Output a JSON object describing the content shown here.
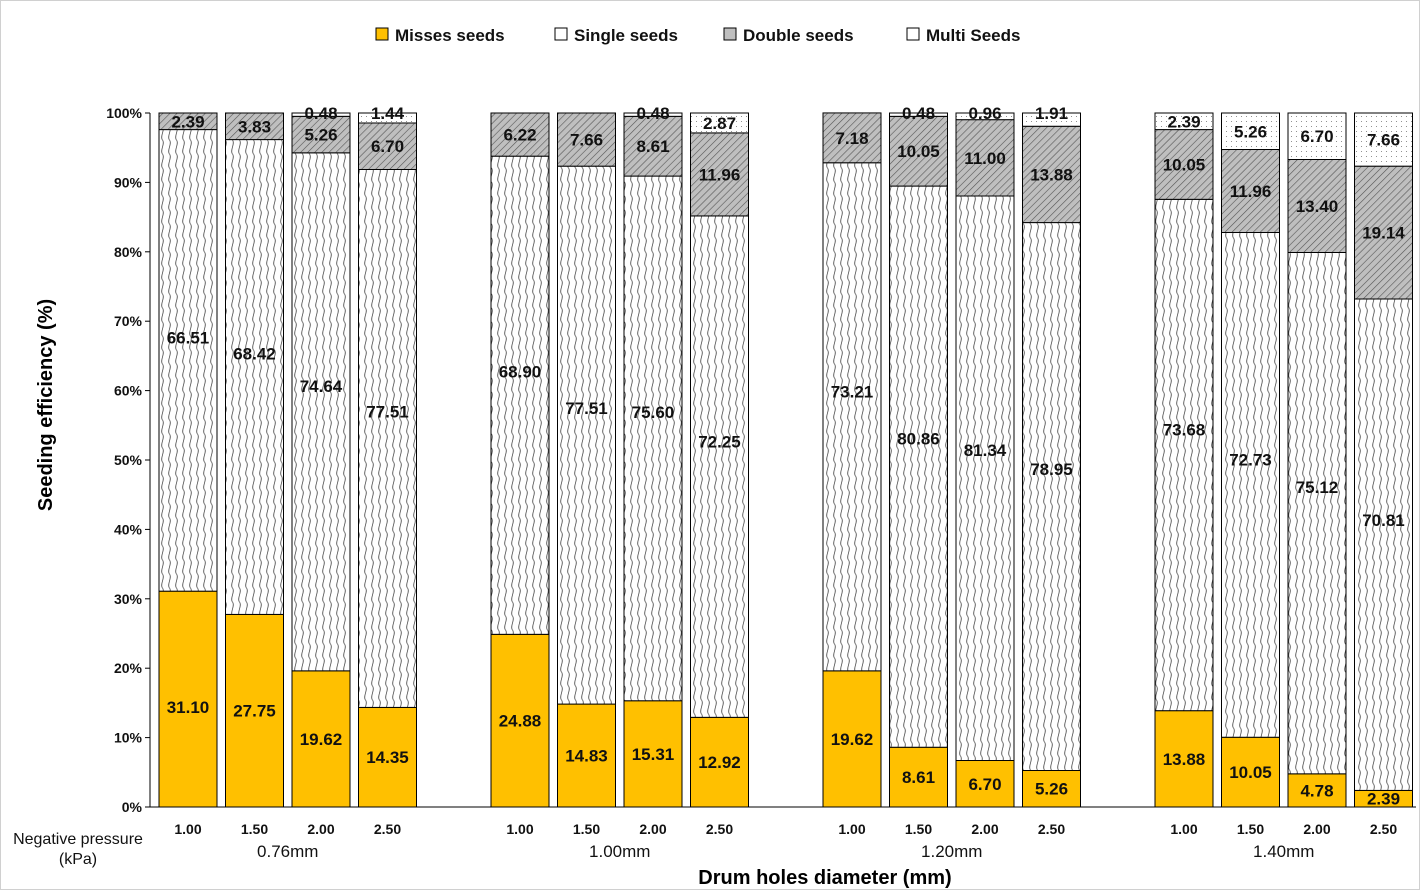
{
  "chart_data": {
    "type": "bar",
    "stacked": true,
    "ylabel": "Seeding efficiency (%)",
    "xlabel": "Drum holes diameter (mm)",
    "subcategory_axis_label": "Negative pressure (kPa)",
    "ylim": [
      0,
      100
    ],
    "yticks": [
      "0%",
      "10%",
      "20%",
      "30%",
      "40%",
      "50%",
      "60%",
      "70%",
      "80%",
      "90%",
      "100%"
    ],
    "grid": false,
    "legend_position": "top",
    "series": [
      {
        "name": "Misses seeds",
        "color": "#FFC000",
        "pattern": "solid"
      },
      {
        "name": "Single seeds",
        "color": "#ffffff",
        "pattern": "waves"
      },
      {
        "name": "Double seeds",
        "color": "#BFBFBF",
        "pattern": "diagonal"
      },
      {
        "name": "Multi Seeds",
        "color": "#ffffff",
        "pattern": "dots"
      }
    ],
    "groups": [
      {
        "label": "0.76mm",
        "bars": [
          {
            "pressure": "1.00",
            "values": [
              31.1,
              66.51,
              2.39,
              0
            ],
            "labels": [
              "31.10",
              "66.51",
              "2.39",
              ""
            ]
          },
          {
            "pressure": "1.50",
            "values": [
              27.75,
              68.42,
              3.83,
              0
            ],
            "labels": [
              "27.75",
              "68.42",
              "3.83",
              ""
            ]
          },
          {
            "pressure": "2.00",
            "values": [
              19.62,
              74.64,
              5.26,
              0.48
            ],
            "labels": [
              "19.62",
              "74.64",
              "5.26",
              "0.48"
            ]
          },
          {
            "pressure": "2.50",
            "values": [
              14.35,
              77.51,
              6.7,
              1.44
            ],
            "labels": [
              "14.35",
              "77.51",
              "6.70",
              "1.44"
            ]
          }
        ]
      },
      {
        "label": "1.00mm",
        "bars": [
          {
            "pressure": "1.00",
            "values": [
              24.88,
              68.9,
              6.22,
              0
            ],
            "labels": [
              "24.88",
              "68.90",
              "6.22",
              ""
            ]
          },
          {
            "pressure": "1.50",
            "values": [
              14.83,
              77.51,
              7.66,
              0
            ],
            "labels": [
              "14.83",
              "77.51",
              "7.66",
              ""
            ]
          },
          {
            "pressure": "2.00",
            "values": [
              15.31,
              75.6,
              8.61,
              0.48
            ],
            "labels": [
              "15.31",
              "75.60",
              "8.61",
              "0.48"
            ]
          },
          {
            "pressure": "2.50",
            "values": [
              12.92,
              72.25,
              11.96,
              2.87
            ],
            "labels": [
              "12.92",
              "72.25",
              "11.96",
              "2.87"
            ]
          }
        ]
      },
      {
        "label": "1.20mm",
        "bars": [
          {
            "pressure": "1.00",
            "values": [
              19.62,
              73.21,
              7.18,
              0
            ],
            "labels": [
              "19.62",
              "73.21",
              "7.18",
              ""
            ]
          },
          {
            "pressure": "1.50",
            "values": [
              8.61,
              80.86,
              10.05,
              0.48
            ],
            "labels": [
              "8.61",
              "80.86",
              "10.05",
              "0.48"
            ]
          },
          {
            "pressure": "2.00",
            "values": [
              6.7,
              81.34,
              11.0,
              0.96
            ],
            "labels": [
              "6.70",
              "81.34",
              "11.00",
              "0.96"
            ]
          },
          {
            "pressure": "2.50",
            "values": [
              5.26,
              78.95,
              13.88,
              1.91
            ],
            "labels": [
              "5.26",
              "78.95",
              "13.88",
              "1.91"
            ]
          }
        ]
      },
      {
        "label": "1.40mm",
        "bars": [
          {
            "pressure": "1.00",
            "values": [
              13.88,
              73.68,
              10.05,
              2.39
            ],
            "labels": [
              "13.88",
              "73.68",
              "10.05",
              "2.39"
            ]
          },
          {
            "pressure": "1.50",
            "values": [
              10.05,
              72.73,
              11.96,
              5.26
            ],
            "labels": [
              "10.05",
              "72.73",
              "11.96",
              "5.26"
            ]
          },
          {
            "pressure": "2.00",
            "values": [
              4.78,
              75.12,
              13.4,
              6.7
            ],
            "labels": [
              "4.78",
              "75.12",
              "13.40",
              "6.70"
            ]
          },
          {
            "pressure": "2.50",
            "values": [
              2.39,
              70.81,
              19.14,
              7.66
            ],
            "labels": [
              "2.39",
              "70.81",
              "19.14",
              "7.66"
            ]
          }
        ]
      }
    ]
  }
}
